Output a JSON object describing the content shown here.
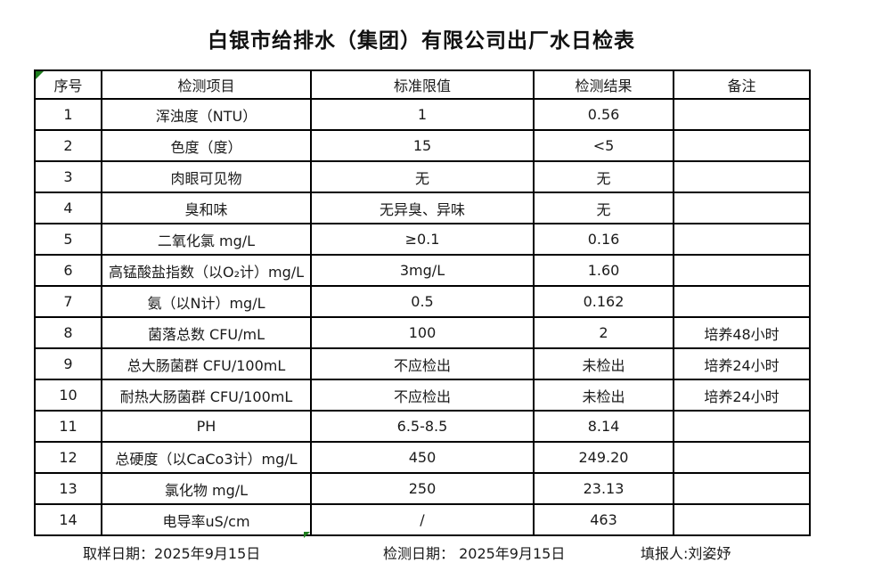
{
  "title": "白银市给排水（集团）有限公司出厂水日检表",
  "table": {
    "headers": [
      "序号",
      "检测项目",
      "标准限值",
      "检测结果",
      "备注"
    ],
    "rows": [
      [
        "1",
        "浑浊度（NTU）",
        "1",
        "0.56",
        ""
      ],
      [
        "2",
        "色度（度）",
        "15",
        "<5",
        ""
      ],
      [
        "3",
        "肉眼可见物",
        "无",
        "无",
        ""
      ],
      [
        "4",
        "臭和味",
        "无异臭、异味",
        "无",
        ""
      ],
      [
        "5",
        "二氧化氯 mg/L",
        "≥0.1",
        "0.16",
        ""
      ],
      [
        "6",
        "高锰酸盐指数（以O₂计）mg/L",
        "3mg/L",
        "1.60",
        ""
      ],
      [
        "7",
        "氨（以N计）mg/L",
        "0.5",
        "0.162",
        ""
      ],
      [
        "8",
        "菌落总数 CFU/mL",
        "100",
        "2",
        "培养48小时"
      ],
      [
        "9",
        "总大肠菌群 CFU/100mL",
        "不应检出",
        "未检出",
        "培养24小时"
      ],
      [
        "10",
        "耐热大肠菌群 CFU/100mL",
        "不应检出",
        "未检出",
        "培养24小时"
      ],
      [
        "11",
        "PH",
        "6.5-8.5",
        "8.14",
        ""
      ],
      [
        "12",
        "总硬度（以CaCo3计）mg/L",
        "450",
        "249.20",
        ""
      ],
      [
        "13",
        "氯化物 mg/L",
        "250",
        "23.13",
        ""
      ],
      [
        "14",
        "电导率uS/cm",
        "/",
        "463",
        ""
      ]
    ]
  },
  "footer": {
    "sample_date": "取样日期：2025年9月15日",
    "test_date": "检测日期： 2025年9月15日",
    "reporter": "填报人:刘姿妤"
  },
  "colors": {
    "marker_green": "#1e7e1e",
    "border_black": "#000000",
    "background": "#ffffff"
  }
}
